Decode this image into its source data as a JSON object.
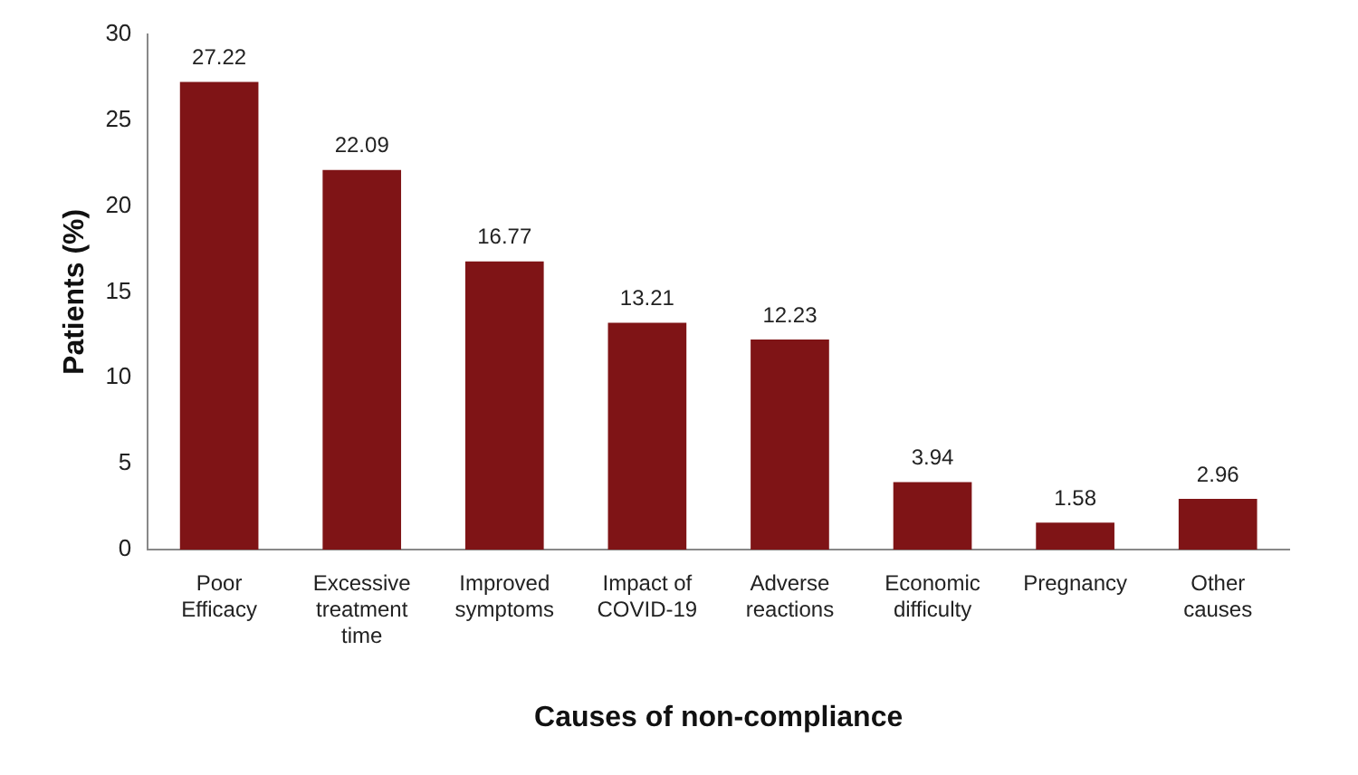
{
  "chart_data": {
    "type": "bar",
    "xlabel": "Causes of non-compliance",
    "ylabel": "Patients (%)",
    "categories": [
      "Poor\nEfficacy",
      "Excessive\ntreatment\ntime",
      "Improved\nsymptoms",
      "Impact of\nCOVID-19",
      "Adverse\nreactions",
      "Economic\ndifficulty",
      "Pregnancy",
      "Other\ncauses"
    ],
    "values": [
      27.22,
      22.09,
      16.77,
      13.21,
      12.23,
      3.94,
      1.58,
      2.96
    ],
    "color": "#7f1416",
    "ylim": [
      0,
      30
    ],
    "yticks": [
      0,
      5,
      10,
      15,
      20,
      25,
      30
    ],
    "grid": false,
    "legend": false,
    "data_labels": true
  }
}
